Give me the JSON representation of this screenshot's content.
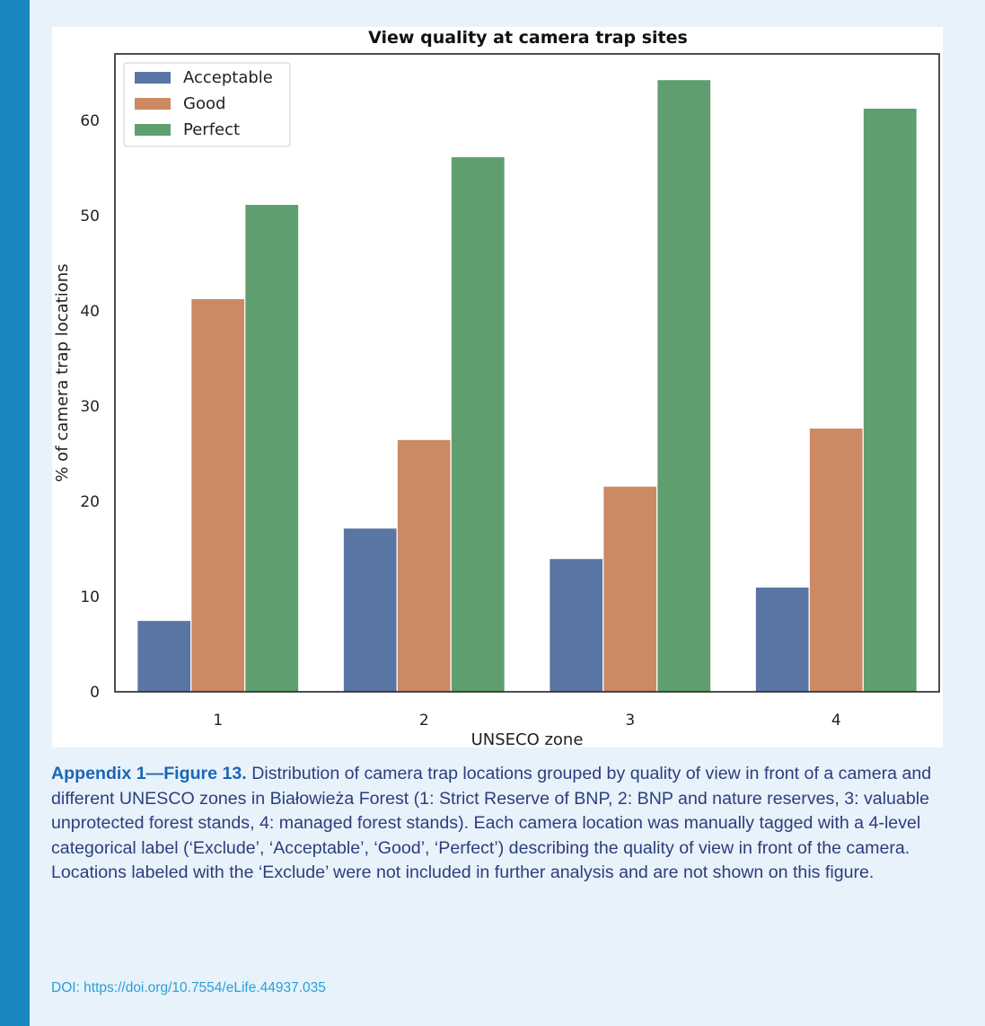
{
  "caption": {
    "label": "Appendix 1—Figure 13.",
    "text": " Distribution of camera trap locations grouped by quality of view in front of a camera and different UNESCO zones in Białowieża Forest (1: Strict Reserve of BNP, 2: BNP and nature reserves, 3: valuable unprotected forest stands, 4: managed forest stands). Each camera location was manually tagged with a 4-level categorical label (‘Exclude’, ‘Acceptable’, ‘Good’, ‘Perfect’) describing the quality of view in front of the camera. Locations labeled with the ‘Exclude’ were not included in further analysis and are not shown on this figure."
  },
  "doi": {
    "label": "DOI: ",
    "link": "https://doi.org/10.7554/eLife.44937.035"
  },
  "chart_data": {
    "type": "bar",
    "title": "View quality at camera trap sites",
    "xlabel": "UNSECO zone",
    "ylabel": "% of camera trap locations",
    "categories": [
      "1",
      "2",
      "3",
      "4"
    ],
    "ylim": [
      0,
      67
    ],
    "yticks": [
      0,
      10,
      20,
      30,
      40,
      50,
      60
    ],
    "grid": false,
    "legend_position": "top-left",
    "series": [
      {
        "name": "Acceptable",
        "color": "#5975a4",
        "values": [
          7.5,
          17.2,
          14.0,
          11.0
        ]
      },
      {
        "name": "Good",
        "color": "#cc8963",
        "values": [
          41.3,
          26.5,
          21.6,
          27.7
        ]
      },
      {
        "name": "Perfect",
        "color": "#5f9e6e",
        "values": [
          51.2,
          56.2,
          64.3,
          61.3
        ]
      }
    ]
  }
}
